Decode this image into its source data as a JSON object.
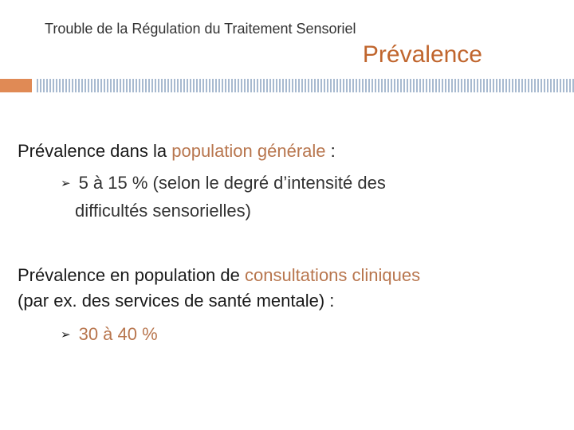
{
  "header": {
    "supertitle": "Trouble de la Régulation du Traitement Sensoriel",
    "title": "Prévalence"
  },
  "colors": {
    "accent": "#c0652d",
    "highlight": "#b8764e",
    "accent_block": "#e08a55",
    "rule": "#a8bad0"
  },
  "content": {
    "point1": {
      "prefix": "Prévalence dans la ",
      "highlight": "population générale",
      "suffix": " :",
      "bullet_icon": "arrow-bullet",
      "sub_line1": "5 à 15 % (selon le degré d’intensité des",
      "sub_line2": "difficultés sensorielles)"
    },
    "point2": {
      "prefix": "Prévalence en population de ",
      "highlight": "consultations cliniques",
      "line2": "(par ex. des services de santé mentale) :",
      "bullet_icon": "arrow-bullet",
      "sub_text": "30 à 40 %"
    }
  }
}
